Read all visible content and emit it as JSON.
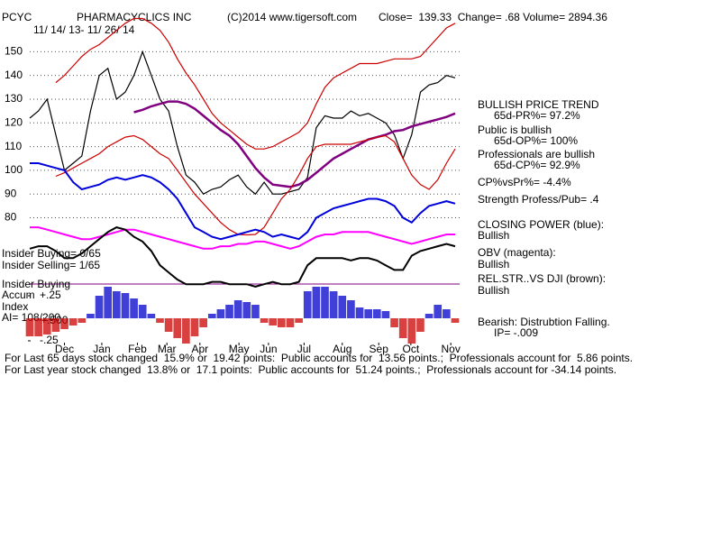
{
  "chart_data": [
    {
      "type": "line",
      "title": "PHARMACYCLICS INC",
      "subtitle": "11/ 14/ 13- 11/ 26/ 14",
      "annotations": [
        "PCYC",
        "(C)2014 www.tigersoft.com",
        "Close=  139.33  Change= .68 Volume= 2894.36",
        "Insider Buying= 0/65",
        "Insider Selling= 1/65",
        "Insider Buying",
        "Accum",
        "Index",
        "AI= 108/200",
        "+.500",
        "BULLISH PRICE TREND",
        "65d-PR%= 97.2%",
        "Public is bullish",
        "65d-OP%= 100%",
        "Professionals are bullish",
        "65d-CP%= 92.9%",
        "CP%vsPr%= -4.4%",
        "Strength Profess/Pub= .4",
        "CLOSING POWER (blue):",
        "Bullish",
        "OBV (magenta):",
        "Bullish",
        "REL.STR..VS DJI (brown):",
        "Bullish",
        "Bearish: Distrubtion Falling.",
        "IP= -.009",
        "For Last 65 days stock changed  15.9% or  19.42 points:  Public accounts for  13.56 points.;  Professionals account for  5.86 points.",
        "For Last year stock changed  13.8% or  17.1 points:  Public accounts for  51.24 points.;  Professionals account for -34.14 points."
      ],
      "x": [
        0,
        1,
        2,
        3,
        4,
        5,
        6,
        7,
        8,
        9,
        10,
        11,
        12,
        13,
        14,
        15,
        16,
        17,
        18,
        19,
        20,
        21,
        22,
        23,
        24,
        25,
        26,
        27,
        28,
        29,
        30,
        31,
        32,
        33,
        34,
        35,
        36,
        37,
        38,
        39,
        40,
        41,
        42,
        43,
        44,
        45,
        46,
        47,
        48,
        49
      ],
      "xlim": [
        0,
        49
      ],
      "xticks": [
        {
          "value": 4,
          "label": "Dec"
        },
        {
          "value": 8.3,
          "label": "Jan"
        },
        {
          "value": 12.4,
          "label": "Feb"
        },
        {
          "value": 15.8,
          "label": "Mar"
        },
        {
          "value": 19.6,
          "label": "Apr"
        },
        {
          "value": 24.1,
          "label": "May"
        },
        {
          "value": 27.5,
          "label": "Jun"
        },
        {
          "value": 31.6,
          "label": "Jul"
        },
        {
          "value": 36,
          "label": "Aug"
        },
        {
          "value": 40.2,
          "label": "Sep"
        },
        {
          "value": 43.9,
          "label": "Oct"
        },
        {
          "value": 48.5,
          "label": "Nov"
        }
      ],
      "ylim": [
        27,
        168
      ],
      "yticks": [
        80,
        90,
        100,
        110,
        120,
        130,
        140,
        150
      ],
      "grid": true,
      "series": [
        {
          "color": "#000000",
          "values": [
            122,
            125,
            130,
            115,
            100,
            103,
            106,
            125,
            140,
            143,
            130,
            133,
            140,
            150,
            140,
            130,
            125,
            110,
            98,
            95,
            90,
            92,
            93,
            96,
            98,
            93,
            90,
            95,
            90,
            90,
            91,
            92,
            97,
            118,
            123,
            122,
            122,
            125,
            123,
            124,
            122,
            120,
            115,
            105,
            115,
            133,
            136,
            137,
            140,
            139
          ]
        },
        {
          "color": "#800080",
          "values": [
            null,
            null,
            null,
            null,
            null,
            null,
            null,
            null,
            null,
            null,
            null,
            null,
            124.5,
            125.5,
            127,
            128,
            129,
            129,
            128,
            126,
            123,
            120,
            117,
            114.6,
            111,
            106,
            101,
            97,
            94,
            93.5,
            93,
            94,
            96,
            99,
            102,
            105,
            107,
            109,
            111,
            113,
            114,
            115,
            116.5,
            117,
            118.5,
            119.5,
            120.5,
            121.5,
            122.5,
            124
          ]
        },
        {
          "color": "#cc0000",
          "values": [
            null,
            null,
            null,
            137,
            140,
            144,
            148,
            151,
            153,
            156,
            159,
            162,
            164,
            164,
            162,
            159,
            154,
            147,
            141,
            136,
            130,
            124,
            120,
            117,
            114,
            111,
            109,
            109,
            110,
            112,
            114,
            116,
            120,
            128,
            135,
            139,
            141,
            143,
            145,
            145,
            145,
            146,
            147,
            147,
            147,
            148,
            152,
            156,
            160,
            162
          ]
        },
        {
          "color": "#cc0000",
          "values": [
            null,
            null,
            null,
            97.5,
            99,
            101,
            103,
            105,
            107,
            110,
            112,
            114,
            114.6,
            113,
            110,
            107,
            105,
            100,
            95,
            90,
            86,
            82,
            78,
            75,
            73,
            72.8,
            73,
            76,
            82,
            88,
            92,
            98,
            105,
            110,
            111,
            111,
            111,
            111,
            112,
            113,
            114,
            114.6,
            112,
            105,
            98,
            94,
            92,
            96,
            103,
            109
          ]
        },
        {
          "color": "#0000dd",
          "values": [
            103,
            103,
            102,
            101,
            100,
            95,
            92,
            93,
            94,
            96,
            97,
            96,
            97,
            98,
            97,
            95,
            92,
            88,
            82,
            76,
            74,
            72,
            71,
            72,
            73,
            74,
            75,
            74,
            72,
            73,
            72,
            71,
            74,
            80,
            82,
            84,
            85,
            86,
            87,
            88,
            88,
            87,
            85,
            80,
            78,
            82,
            85,
            86,
            87,
            86
          ]
        },
        {
          "color": "#ff00ff",
          "values": [
            76,
            76,
            75,
            74,
            73,
            72,
            71,
            71,
            72,
            73,
            74,
            75,
            75,
            74,
            73,
            72,
            71,
            70,
            69,
            68,
            67,
            67,
            68,
            68,
            69,
            69,
            70,
            70,
            69,
            68,
            67,
            68,
            70,
            72,
            73,
            73,
            74,
            74,
            74,
            74,
            73,
            72,
            71,
            70,
            69,
            70,
            71,
            72,
            73,
            73
          ]
        },
        {
          "color": "#000000",
          "values": [
            67,
            68,
            68,
            66,
            63,
            63,
            65,
            68,
            71,
            74,
            76,
            75,
            72,
            70,
            66,
            60,
            57,
            54,
            52,
            52,
            52,
            53,
            53,
            52,
            52,
            52,
            51,
            52,
            53,
            52,
            52,
            53,
            60,
            63,
            63,
            63,
            63,
            62,
            63,
            63,
            62,
            60,
            58,
            58,
            64,
            66,
            67,
            68,
            69,
            68
          ]
        }
      ]
    },
    {
      "type": "bar",
      "ylim": [
        -0.41,
        0.42
      ],
      "yticks": [
        {
          "value": 0.25,
          "label": "+.25"
        },
        {
          "value": -0.25,
          "label": "-.25"
        }
      ],
      "colors": [
        "#0000cc",
        "#cc0000"
      ],
      "values": [
        -0.2,
        -0.2,
        -0.18,
        -0.15,
        -0.12,
        -0.08,
        -0.05,
        0.05,
        0.25,
        0.35,
        0.3,
        0.28,
        0.22,
        0.15,
        0.05,
        -0.05,
        -0.15,
        -0.22,
        -0.28,
        -0.2,
        -0.1,
        0.05,
        0.1,
        0.15,
        0.2,
        0.18,
        0.15,
        -0.05,
        -0.08,
        -0.1,
        -0.1,
        -0.05,
        0.3,
        0.35,
        0.35,
        0.3,
        0.25,
        0.2,
        0.12,
        0.1,
        0.1,
        0.08,
        -0.1,
        -0.22,
        -0.28,
        -0.15,
        0.05,
        0.15,
        0.1,
        -0.05
      ]
    }
  ]
}
